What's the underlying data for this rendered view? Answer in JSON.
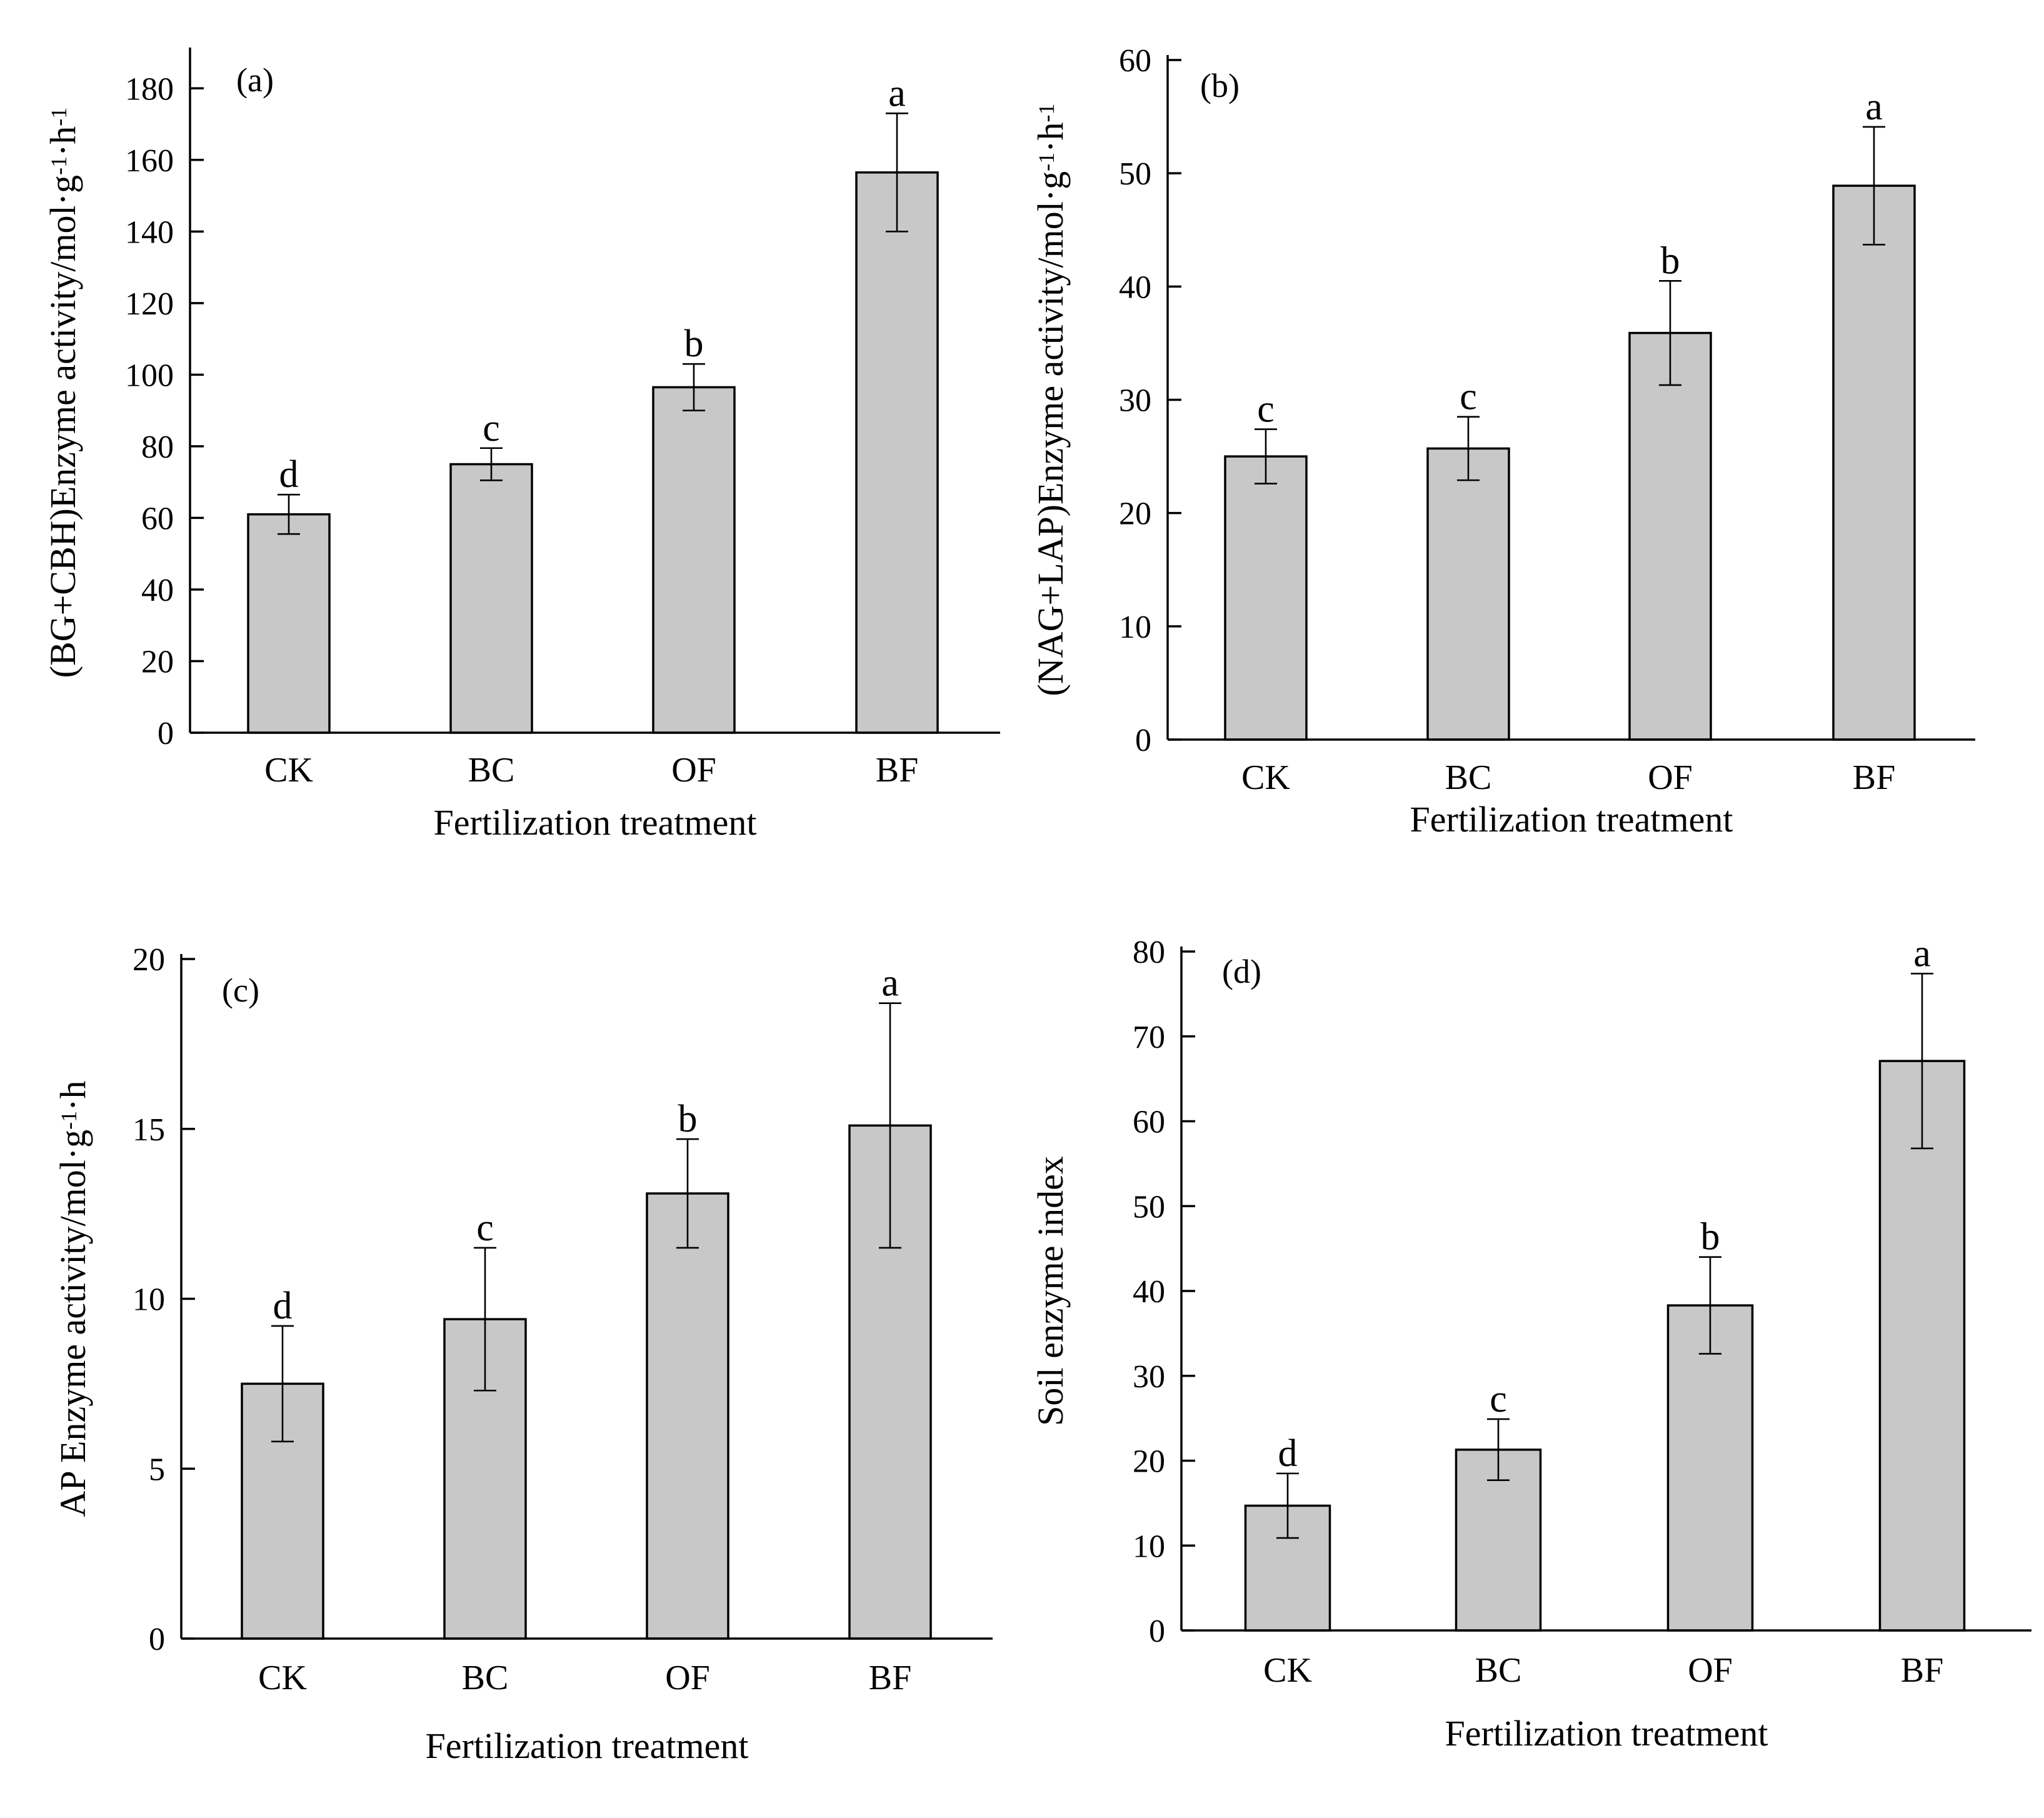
{
  "chart_data": [
    {
      "id": "a",
      "type": "bar",
      "panel_label": "(a)",
      "categories": [
        "CK",
        "BC",
        "OF",
        "BF"
      ],
      "values": [
        61,
        75,
        96.5,
        156.5
      ],
      "errors": [
        5.5,
        4.5,
        6.5,
        16.5
      ],
      "significance": [
        "d",
        "c",
        "b",
        "a"
      ],
      "xlabel": "Fertilization treatment",
      "ylabel_parts": [
        {
          "t": "(BG+CBH)Enzyme activity/mol·g"
        },
        {
          "t": "-1",
          "sup": true
        },
        {
          "t": "·h"
        },
        {
          "t": "-1",
          "sup": true
        }
      ],
      "ylim": [
        0,
        190
      ],
      "yticks": [
        0,
        20,
        40,
        60,
        80,
        100,
        120,
        140,
        160,
        180
      ]
    },
    {
      "id": "b",
      "type": "bar",
      "panel_label": "(b)",
      "categories": [
        "CK",
        "BC",
        "OF",
        "BF"
      ],
      "values": [
        25,
        25.7,
        35.9,
        48.9
      ],
      "errors": [
        2.4,
        2.8,
        4.6,
        5.2
      ],
      "significance": [
        "c",
        "c",
        "b",
        "a"
      ],
      "xlabel": "Fertilization treatment",
      "ylabel_parts": [
        {
          "t": "(NAG+LAP)Enzyme activity/mol·g"
        },
        {
          "t": "-1",
          "sup": true
        },
        {
          "t": "·h"
        },
        {
          "t": "-1",
          "sup": true
        }
      ],
      "ylim": [
        0,
        60
      ],
      "yticks": [
        0,
        10,
        20,
        30,
        40,
        50,
        60
      ]
    },
    {
      "id": "c",
      "type": "bar",
      "panel_label": "(c)",
      "categories": [
        "CK",
        "BC",
        "OF",
        "BF"
      ],
      "values": [
        7.5,
        9.4,
        13.1,
        15.1
      ],
      "errors": [
        1.7,
        2.1,
        1.6,
        3.6
      ],
      "significance": [
        "d",
        "c",
        "b",
        "a"
      ],
      "xlabel": "Fertilization treatment",
      "ylabel_parts": [
        {
          "t": "AP Enzyme activity/mol·g"
        },
        {
          "t": "-1",
          "sup": true
        },
        {
          "t": "·h"
        }
      ],
      "ylim": [
        0,
        20
      ],
      "yticks": [
        0,
        5,
        10,
        15,
        20
      ]
    },
    {
      "id": "d",
      "type": "bar",
      "panel_label": "(d)",
      "categories": [
        "CK",
        "BC",
        "OF",
        "BF"
      ],
      "values": [
        14.7,
        21.3,
        38.3,
        67.1
      ],
      "errors": [
        3.8,
        3.6,
        5.7,
        10.3
      ],
      "significance": [
        "d",
        "c",
        "b",
        "a"
      ],
      "xlabel": "Fertilization treatment",
      "ylabel_parts": [
        {
          "t": "Soil enzyme index"
        }
      ],
      "ylim": [
        0,
        80
      ],
      "yticks": [
        0,
        10,
        20,
        30,
        40,
        50,
        60,
        70,
        80
      ]
    }
  ],
  "colors": {
    "bar_fill": "#c8c8c8",
    "bar_stroke": "#000000",
    "axis": "#000000",
    "background": "#ffffff"
  }
}
